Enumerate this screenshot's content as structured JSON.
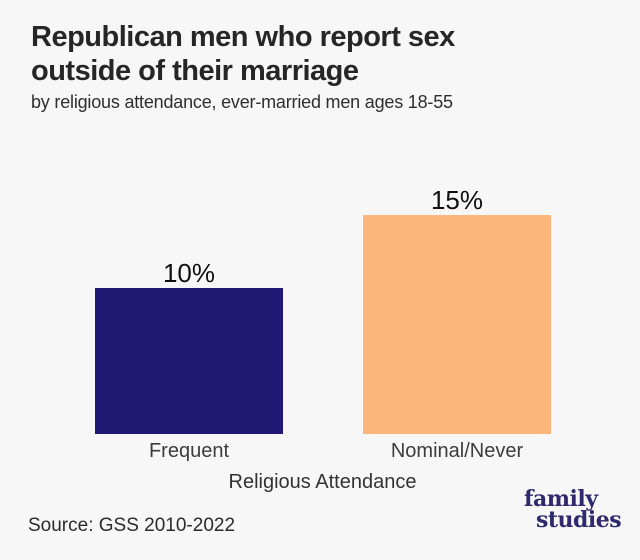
{
  "page": {
    "background_color": "#f7f7f7"
  },
  "header": {
    "title": "Republican men who report sex outside of their marriage",
    "subtitle": "by religious attendance, ever-married men ages 18-55"
  },
  "chart_data": {
    "type": "bar",
    "title": "Republican men who report sex outside of their marriage",
    "subtitle": "by religious attendance, ever-married men ages 18-55",
    "categories": [
      "Frequent",
      "Nominal/Never"
    ],
    "values": [
      10,
      15
    ],
    "value_labels": [
      "10%",
      "15%"
    ],
    "xlabel": "Religious Attendance",
    "ylabel": "",
    "ylim": [
      0,
      16
    ],
    "bar_colors": [
      "#201a74",
      "#fdb77c"
    ],
    "grid": false,
    "legend": false,
    "axis_lines": false
  },
  "footer": {
    "source": "Source: GSS 2010-2022",
    "logo": {
      "line1": "family",
      "line2": "studies",
      "color": "#2e2a6d"
    }
  }
}
